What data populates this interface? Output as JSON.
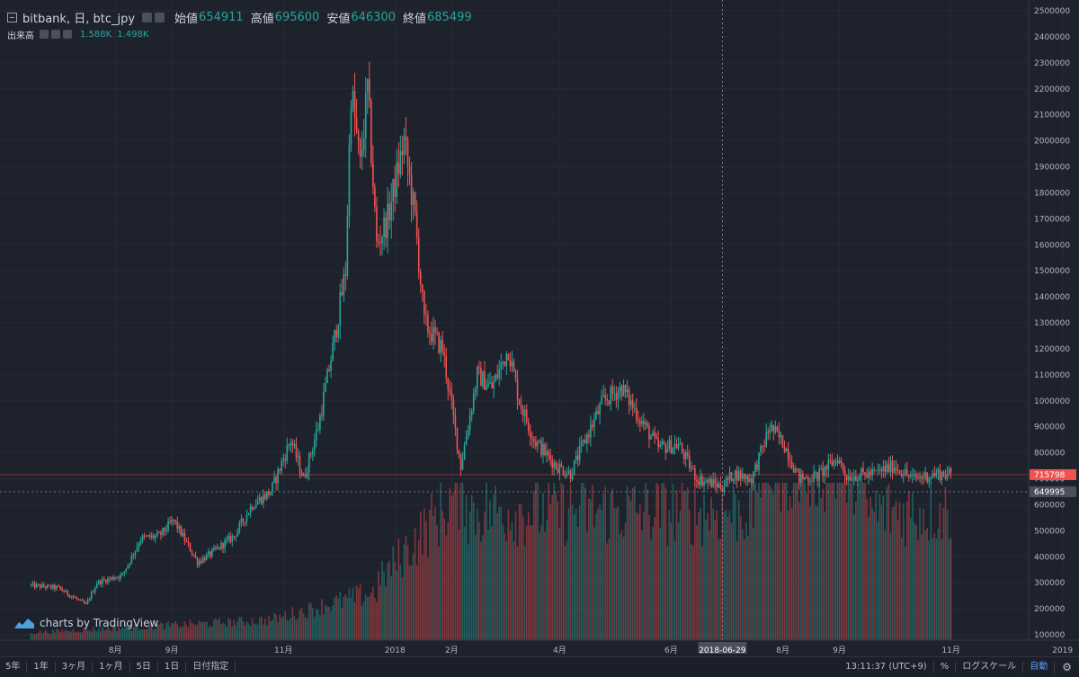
{
  "legend": {
    "symbol": "bitbank, 日, btc_jpy",
    "open_label": "始値",
    "open": "654911",
    "high_label": "高値",
    "high": "695600",
    "low_label": "安値",
    "low": "646300",
    "close_label": "終値",
    "close": "685499",
    "volume_label": "出来高",
    "volume1": "1.588K",
    "volume2": "1.498K"
  },
  "watermark": "charts by TradingView",
  "toolbar": {
    "ranges": [
      "5年",
      "1年",
      "3ヶ月",
      "1ヶ月",
      "5日",
      "1日",
      "日付指定"
    ],
    "time": "13:11:37 (UTC+9)",
    "percent": "%",
    "log": "ログスケール",
    "auto": "自動"
  },
  "colors": {
    "up": "#26a69a",
    "down": "#ef5350",
    "background": "#1e222d"
  },
  "chart_data": {
    "type": "candlestick",
    "y_tick_labels": [
      "100000",
      "200000",
      "300000",
      "400000",
      "500000",
      "600000",
      "700000",
      "800000",
      "900000",
      "1000000",
      "1100000",
      "1200000",
      "1300000",
      "1400000",
      "1500000",
      "1600000",
      "1700000",
      "1800000",
      "1900000",
      "2000000",
      "2100000",
      "2200000",
      "2300000",
      "2400000",
      "2500000"
    ],
    "ylim": [
      75000,
      2510000
    ],
    "x_tick_labels": [
      "8月",
      "9月",
      "11月",
      "2018",
      "2月",
      "4月",
      "6月",
      "8月",
      "9月",
      "11月",
      "2019"
    ],
    "crosshair_date": "2018-06-29",
    "price_markers": {
      "last": "715798",
      "crosshair": "649995"
    },
    "series": [
      {
        "name": "btc_jpy",
        "close_points": [
          [
            "2017-06-15",
            290000
          ],
          [
            "2017-07-01",
            280000
          ],
          [
            "2017-07-16",
            215000
          ],
          [
            "2017-07-22",
            300000
          ],
          [
            "2017-08-05",
            330000
          ],
          [
            "2017-08-15",
            470000
          ],
          [
            "2017-08-25",
            480000
          ],
          [
            "2017-09-02",
            540000
          ],
          [
            "2017-09-15",
            380000
          ],
          [
            "2017-09-22",
            410000
          ],
          [
            "2017-10-05",
            480000
          ],
          [
            "2017-10-15",
            600000
          ],
          [
            "2017-10-25",
            650000
          ],
          [
            "2017-11-05",
            850000
          ],
          [
            "2017-11-12",
            700000
          ],
          [
            "2017-11-20",
            900000
          ],
          [
            "2017-11-28",
            1200000
          ],
          [
            "2017-12-05",
            1500000
          ],
          [
            "2017-12-08",
            2200000
          ],
          [
            "2017-12-13",
            1900000
          ],
          [
            "2017-12-17",
            2200000
          ],
          [
            "2017-12-22",
            1600000
          ],
          [
            "2017-12-28",
            1700000
          ],
          [
            "2018-01-06",
            2000000
          ],
          [
            "2018-01-12",
            1700000
          ],
          [
            "2018-01-17",
            1300000
          ],
          [
            "2018-01-27",
            1200000
          ],
          [
            "2018-02-06",
            750000
          ],
          [
            "2018-02-15",
            1100000
          ],
          [
            "2018-02-23",
            1050000
          ],
          [
            "2018-03-04",
            1200000
          ],
          [
            "2018-03-10",
            1000000
          ],
          [
            "2018-03-18",
            850000
          ],
          [
            "2018-03-30",
            750000
          ],
          [
            "2018-04-07",
            720000
          ],
          [
            "2018-04-15",
            850000
          ],
          [
            "2018-04-25",
            1000000
          ],
          [
            "2018-05-05",
            1050000
          ],
          [
            "2018-05-15",
            930000
          ],
          [
            "2018-05-25",
            820000
          ],
          [
            "2018-06-05",
            830000
          ],
          [
            "2018-06-15",
            700000
          ],
          [
            "2018-06-29",
            670000
          ],
          [
            "2018-07-05",
            720000
          ],
          [
            "2018-07-15",
            700000
          ],
          [
            "2018-07-25",
            900000
          ],
          [
            "2018-08-02",
            830000
          ],
          [
            "2018-08-10",
            700000
          ],
          [
            "2018-08-20",
            710000
          ],
          [
            "2018-08-31",
            780000
          ],
          [
            "2018-09-05",
            710000
          ],
          [
            "2018-09-20",
            720000
          ],
          [
            "2018-10-01",
            750000
          ],
          [
            "2018-10-11",
            700000
          ],
          [
            "2018-10-25",
            720000
          ],
          [
            "2018-11-01",
            715798
          ]
        ]
      }
    ],
    "volume": {
      "name": "出来高",
      "peak_date": "2018-08-15"
    },
    "grid": true
  }
}
